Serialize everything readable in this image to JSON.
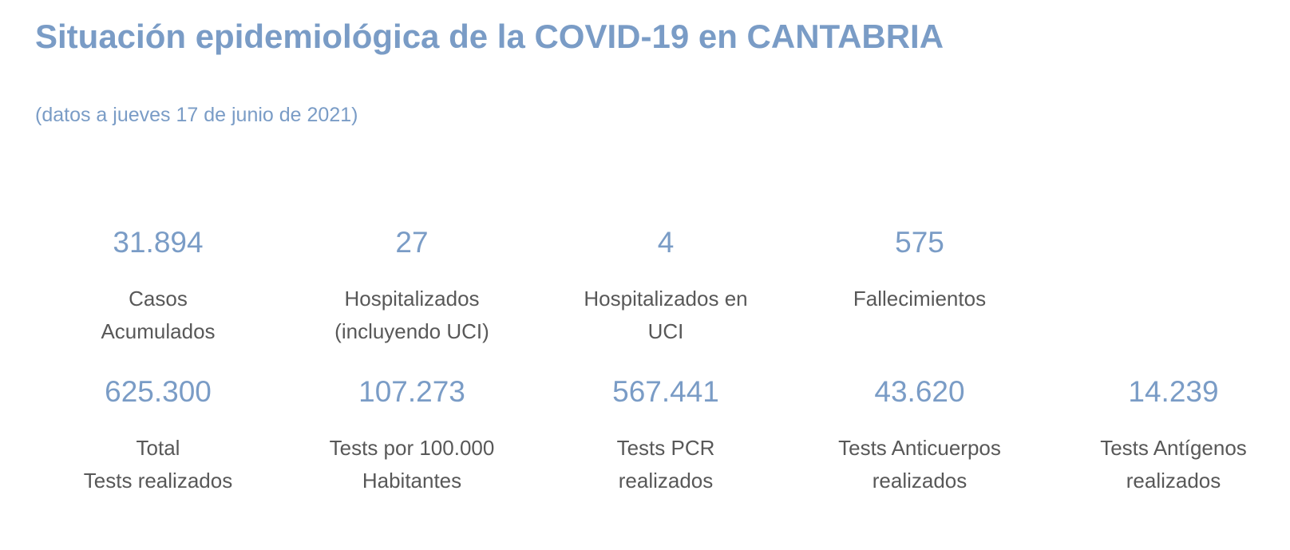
{
  "header": {
    "title": "Situación epidemiológica de la COVID-19 en CANTABRIA",
    "subtitle": "(datos a jueves 17 de junio de 2021)"
  },
  "stats": {
    "cases": {
      "value": "31.894",
      "label": "Casos\nAcumulados"
    },
    "hospitalized": {
      "value": "27",
      "label": "Hospitalizados\n(incluyendo UCI)"
    },
    "icu": {
      "value": "4",
      "label": "Hospitalizados en\nUCI"
    },
    "deaths": {
      "value": "575",
      "label": "Fallecimientos"
    },
    "total_tests": {
      "value": "625.300",
      "label": "Total\nTests realizados"
    },
    "tests_per_100k": {
      "value": "107.273",
      "label": "Tests por 100.000\nHabitantes"
    },
    "pcr_tests": {
      "value": "567.441",
      "label": "Tests PCR\nrealizados"
    },
    "antibody_tests": {
      "value": "43.620",
      "label": "Tests Anticuerpos\nrealizados"
    },
    "antigen_tests": {
      "value": "14.239",
      "label": "Tests Antígenos\nrealizados"
    }
  },
  "colors": {
    "accent": "#7a9cc6",
    "label_text": "#585858",
    "background": "#ffffff"
  }
}
